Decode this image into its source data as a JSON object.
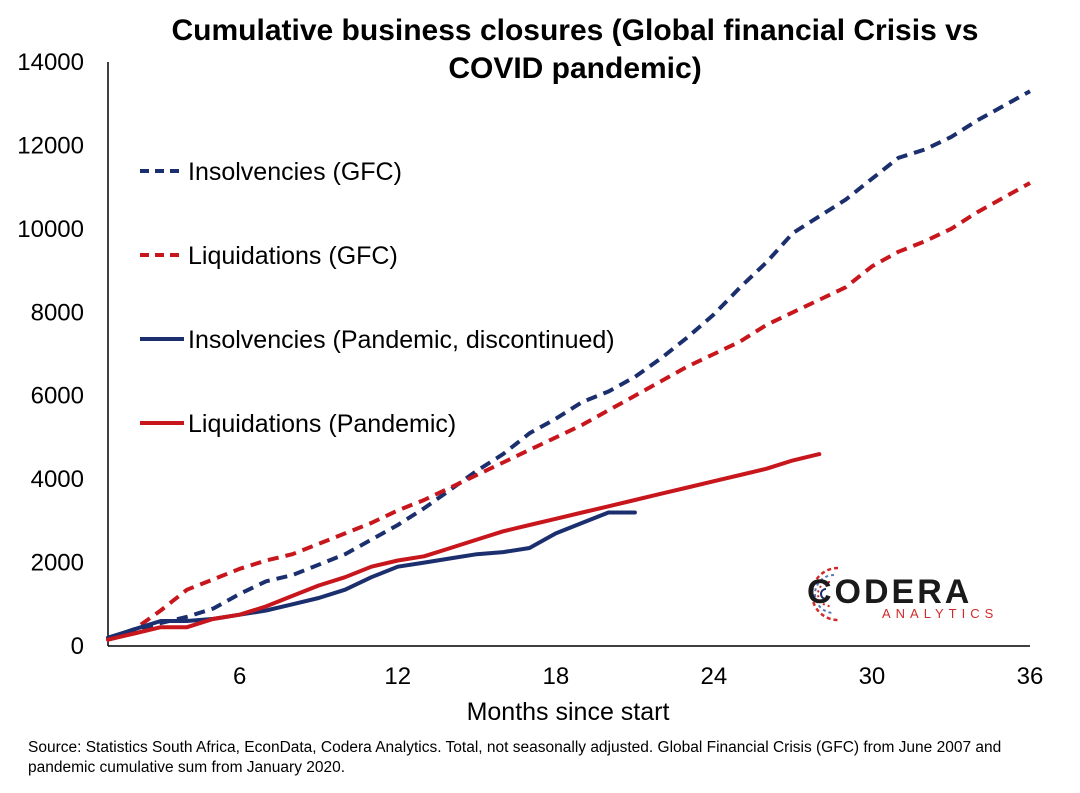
{
  "chart_data": {
    "type": "line",
    "title_lines": [
      "Cumulative business closures (Global financial Crisis vs",
      "COVID pandemic)"
    ],
    "xlabel": "Months since start",
    "ylabel": "",
    "xlim": [
      1,
      36
    ],
    "ylim": [
      0,
      14000
    ],
    "xticks": [
      6,
      12,
      18,
      24,
      30,
      36
    ],
    "yticks": [
      0,
      2000,
      4000,
      6000,
      8000,
      10000,
      12000,
      14000
    ],
    "grid": false,
    "legend_position": "left",
    "series": [
      {
        "name": "Insolvencies (GFC)",
        "color": "#1b2f6e",
        "style": "dashed",
        "x": [
          1,
          2,
          3,
          4,
          5,
          6,
          7,
          8,
          9,
          10,
          11,
          12,
          13,
          14,
          15,
          16,
          17,
          18,
          19,
          20,
          21,
          22,
          23,
          24,
          25,
          26,
          27,
          28,
          29,
          30,
          31,
          32,
          33,
          34,
          35,
          36
        ],
        "values": [
          150,
          350,
          550,
          700,
          900,
          1250,
          1550,
          1700,
          1950,
          2200,
          2550,
          2900,
          3300,
          3750,
          4200,
          4600,
          5100,
          5450,
          5850,
          6100,
          6450,
          6900,
          7400,
          7950,
          8600,
          9200,
          9900,
          10300,
          10700,
          11200,
          11700,
          11900,
          12200,
          12600,
          12950,
          13300
        ]
      },
      {
        "name": "Liquidations (GFC)",
        "color": "#c8161d",
        "style": "dashed",
        "x": [
          1,
          2,
          3,
          4,
          5,
          6,
          7,
          8,
          9,
          10,
          11,
          12,
          13,
          14,
          15,
          16,
          17,
          18,
          19,
          20,
          21,
          22,
          23,
          24,
          25,
          26,
          27,
          28,
          29,
          30,
          31,
          32,
          33,
          34,
          35,
          36
        ],
        "values": [
          180,
          400,
          850,
          1350,
          1600,
          1850,
          2050,
          2200,
          2450,
          2700,
          2950,
          3250,
          3500,
          3800,
          4100,
          4400,
          4700,
          5000,
          5300,
          5650,
          6000,
          6350,
          6700,
          7000,
          7300,
          7700,
          8000,
          8300,
          8600,
          9100,
          9450,
          9700,
          10000,
          10400,
          10750,
          11100
        ]
      },
      {
        "name": "Insolvencies (Pandemic, discontinued)",
        "color": "#1b2f6e",
        "style": "solid",
        "x": [
          1,
          2,
          3,
          4,
          5,
          6,
          7,
          8,
          9,
          10,
          11,
          12,
          13,
          14,
          15,
          16,
          17,
          18,
          19,
          20,
          21
        ],
        "values": [
          200,
          400,
          600,
          600,
          650,
          750,
          850,
          1000,
          1150,
          1350,
          1650,
          1900,
          2000,
          2100,
          2200,
          2250,
          2350,
          2700,
          2950,
          3200,
          3200
        ]
      },
      {
        "name": "Liquidations (Pandemic)",
        "color": "#c8161d",
        "style": "solid",
        "x": [
          1,
          2,
          3,
          4,
          5,
          6,
          7,
          8,
          9,
          10,
          11,
          12,
          13,
          14,
          15,
          16,
          17,
          18,
          19,
          20,
          21,
          22,
          23,
          24,
          25,
          26,
          27,
          28
        ],
        "values": [
          150,
          300,
          450,
          450,
          650,
          750,
          950,
          1200,
          1450,
          1650,
          1900,
          2050,
          2150,
          2350,
          2550,
          2750,
          2900,
          3050,
          3200,
          3350,
          3500,
          3650,
          3800,
          3950,
          4100,
          4250,
          4450,
          4600
        ]
      }
    ]
  },
  "source_note": "Source: Statistics South Africa, EconData, Codera Analytics. Total, not seasonally adjusted. Global Financial Crisis (GFC) from June 2007 and pandemic cumulative sum from January 2020.",
  "brand": {
    "name": "CODERA",
    "sub": "ANALYTICS"
  }
}
